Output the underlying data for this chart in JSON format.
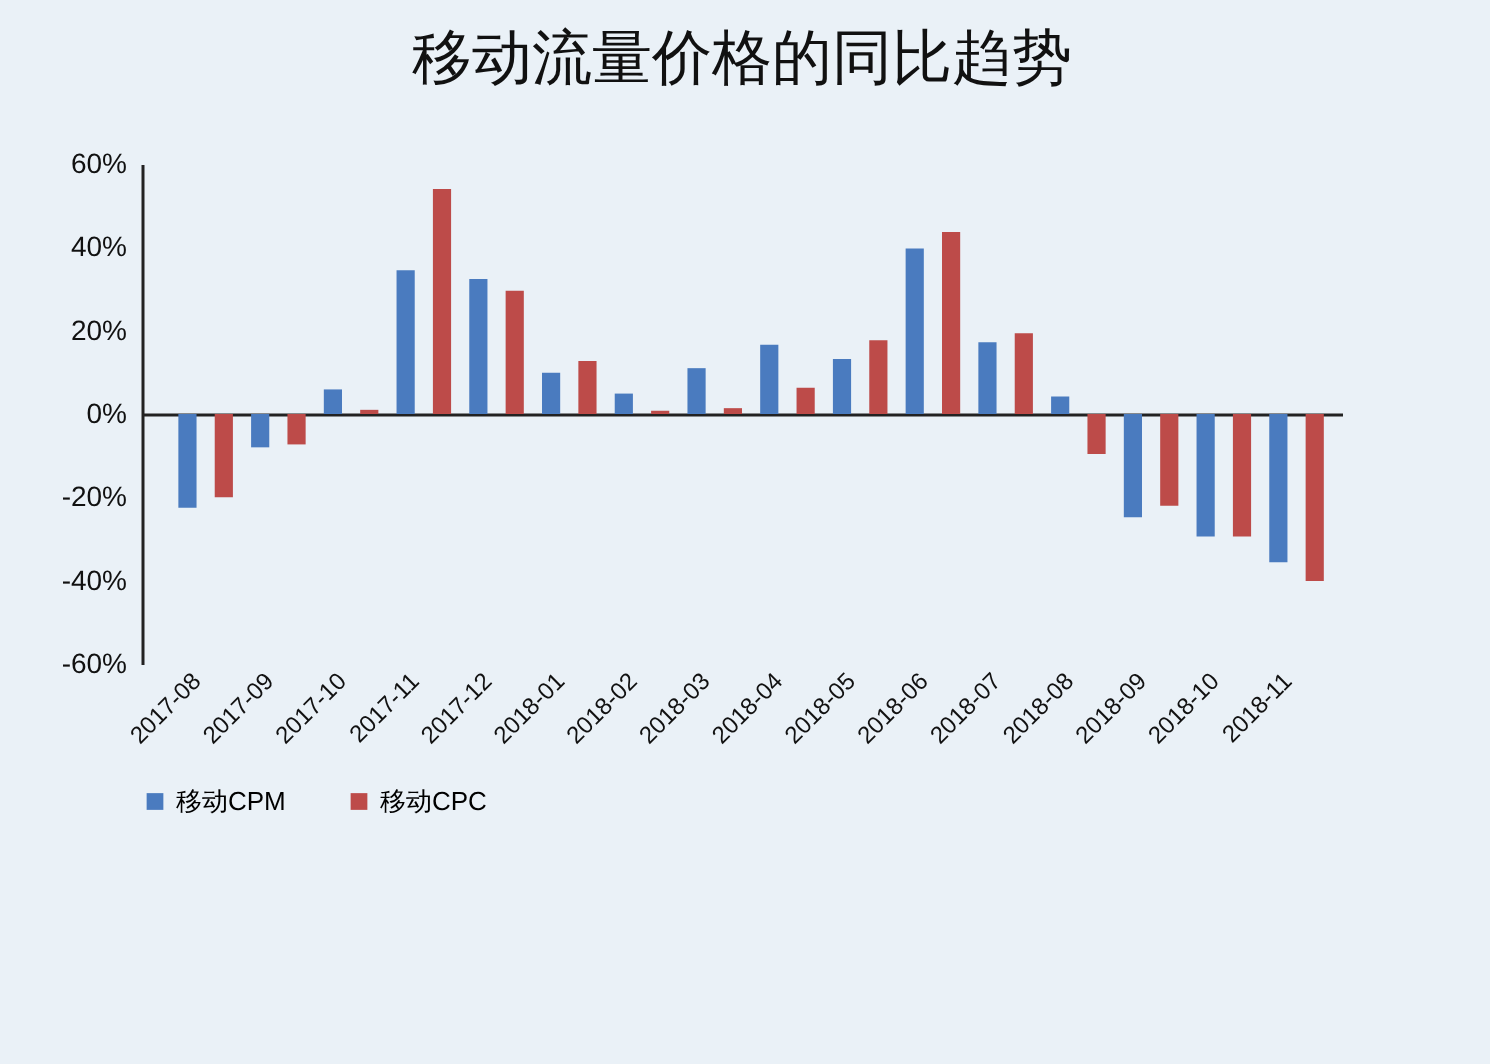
{
  "chart_data": {
    "type": "bar",
    "title": "移动流量价格的同比趋势",
    "categories": [
      "2017-08",
      "2017-09",
      "2017-10",
      "2017-11",
      "2017-12",
      "2018-01",
      "2018-02",
      "2018-03",
      "2018-04",
      "2018-05",
      "2018-06",
      "2018-07",
      "2018-08",
      "2018-09",
      "2018-10",
      "2018-11"
    ],
    "series": [
      {
        "name": "移动CPM",
        "color": "#4a7bbf",
        "values": [
          -22.5,
          -8,
          5.9,
          34.5,
          32.4,
          9.9,
          4.9,
          11,
          16.6,
          13.2,
          39.7,
          17.2,
          4.2,
          -24.8,
          -29.4,
          -35.6
        ]
      },
      {
        "name": "移动CPC",
        "color": "#bd4b49",
        "values": [
          -20,
          -7.3,
          1,
          54,
          29.6,
          12.7,
          0.8,
          1.4,
          6.3,
          17.7,
          43.7,
          19.4,
          -9.6,
          -22,
          -29.4,
          -40.1
        ]
      }
    ],
    "ylim": [
      -60,
      60
    ],
    "yticks": [
      {
        "value": -60,
        "label": "-60%"
      },
      {
        "value": -40,
        "label": "-40%"
      },
      {
        "value": -20,
        "label": "-20%"
      },
      {
        "value": 0,
        "label": "0%"
      },
      {
        "value": 20,
        "label": "20%"
      },
      {
        "value": 40,
        "label": "40%"
      },
      {
        "value": 60,
        "label": "60%"
      }
    ],
    "legend": "bottom"
  }
}
